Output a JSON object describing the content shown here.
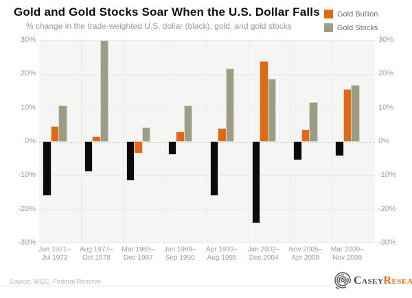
{
  "header": {
    "title": "Gold and Gold Stocks Soar When the U.S. Dollar Falls",
    "subtitle": "% change in the trade-weighted U.S. dollar (black), gold, and gold stocks"
  },
  "legend": [
    {
      "label": "Gold Bullion",
      "color": "#e2690f"
    },
    {
      "label": "Gold Stocks",
      "color": "#9d9d85"
    }
  ],
  "chart_data": {
    "type": "bar",
    "title": "Gold and Gold Stocks Soar When the U.S. Dollar Falls",
    "subtitle": "% change in the trade-weighted U.S. dollar (black), gold, and gold stocks",
    "categories": [
      [
        "Jan 1971–",
        "Jul 1973"
      ],
      [
        "Aug 1977–",
        "Oct 1978"
      ],
      [
        "Mar 1985–",
        "Dec 1987"
      ],
      [
        "Jun 1989–",
        "Sep 1990"
      ],
      [
        "Apr 1993–",
        "Aug 1995"
      ],
      [
        "Jan 2002–",
        "Dec 2004"
      ],
      [
        "Nov 2005–",
        "Apr 2008"
      ],
      [
        "Mar 2009–",
        "Nov 2009"
      ]
    ],
    "series": [
      {
        "name": "U.S. Dollar Index",
        "color": "#0b0b0b",
        "values": [
          -15.9,
          -8.8,
          -11.5,
          -3.7,
          -15.9,
          -24.0,
          -5.3,
          -4.1
        ]
      },
      {
        "name": "Gold Bullion",
        "color": "#e2690f",
        "values": [
          4.4,
          1.4,
          -3.4,
          2.7,
          3.7,
          23.7,
          3.4,
          15.4
        ]
      },
      {
        "name": "Gold Stocks",
        "color": "#9d9d85",
        "values": [
          10.5,
          29.8,
          3.9,
          10.5,
          21.3,
          18.3,
          11.5,
          16.6
        ]
      }
    ],
    "ylim": [
      -30,
      30
    ],
    "yticks": [
      30,
      20,
      10,
      0,
      -10,
      -20,
      -30
    ],
    "ytick_labels": [
      "30%",
      "20%",
      "10%",
      "0%",
      "-10%",
      "-20%",
      "-30%"
    ],
    "grid": true,
    "zero_line": "dashed",
    "legend_position": "top-right",
    "xlabel": "",
    "ylabel": ""
  },
  "footer": {
    "source": "Source: WGC, Federal Reserve",
    "brand_part1": "Casey",
    "brand_part2": "Research"
  },
  "colors": {
    "plot_background": "#f5f5f3",
    "page_background": "#ffffff",
    "gridline": "#e8e8e5",
    "zero_line": "#bfbfbd",
    "title_text": "#0c0c0c",
    "muted_text": "#9b9b9b",
    "black_series": "#0b0b0b",
    "orange_series": "#e2690f",
    "olive_series": "#9d9d85",
    "brand_orange": "#e2690f",
    "brand_gray": "#454543"
  }
}
